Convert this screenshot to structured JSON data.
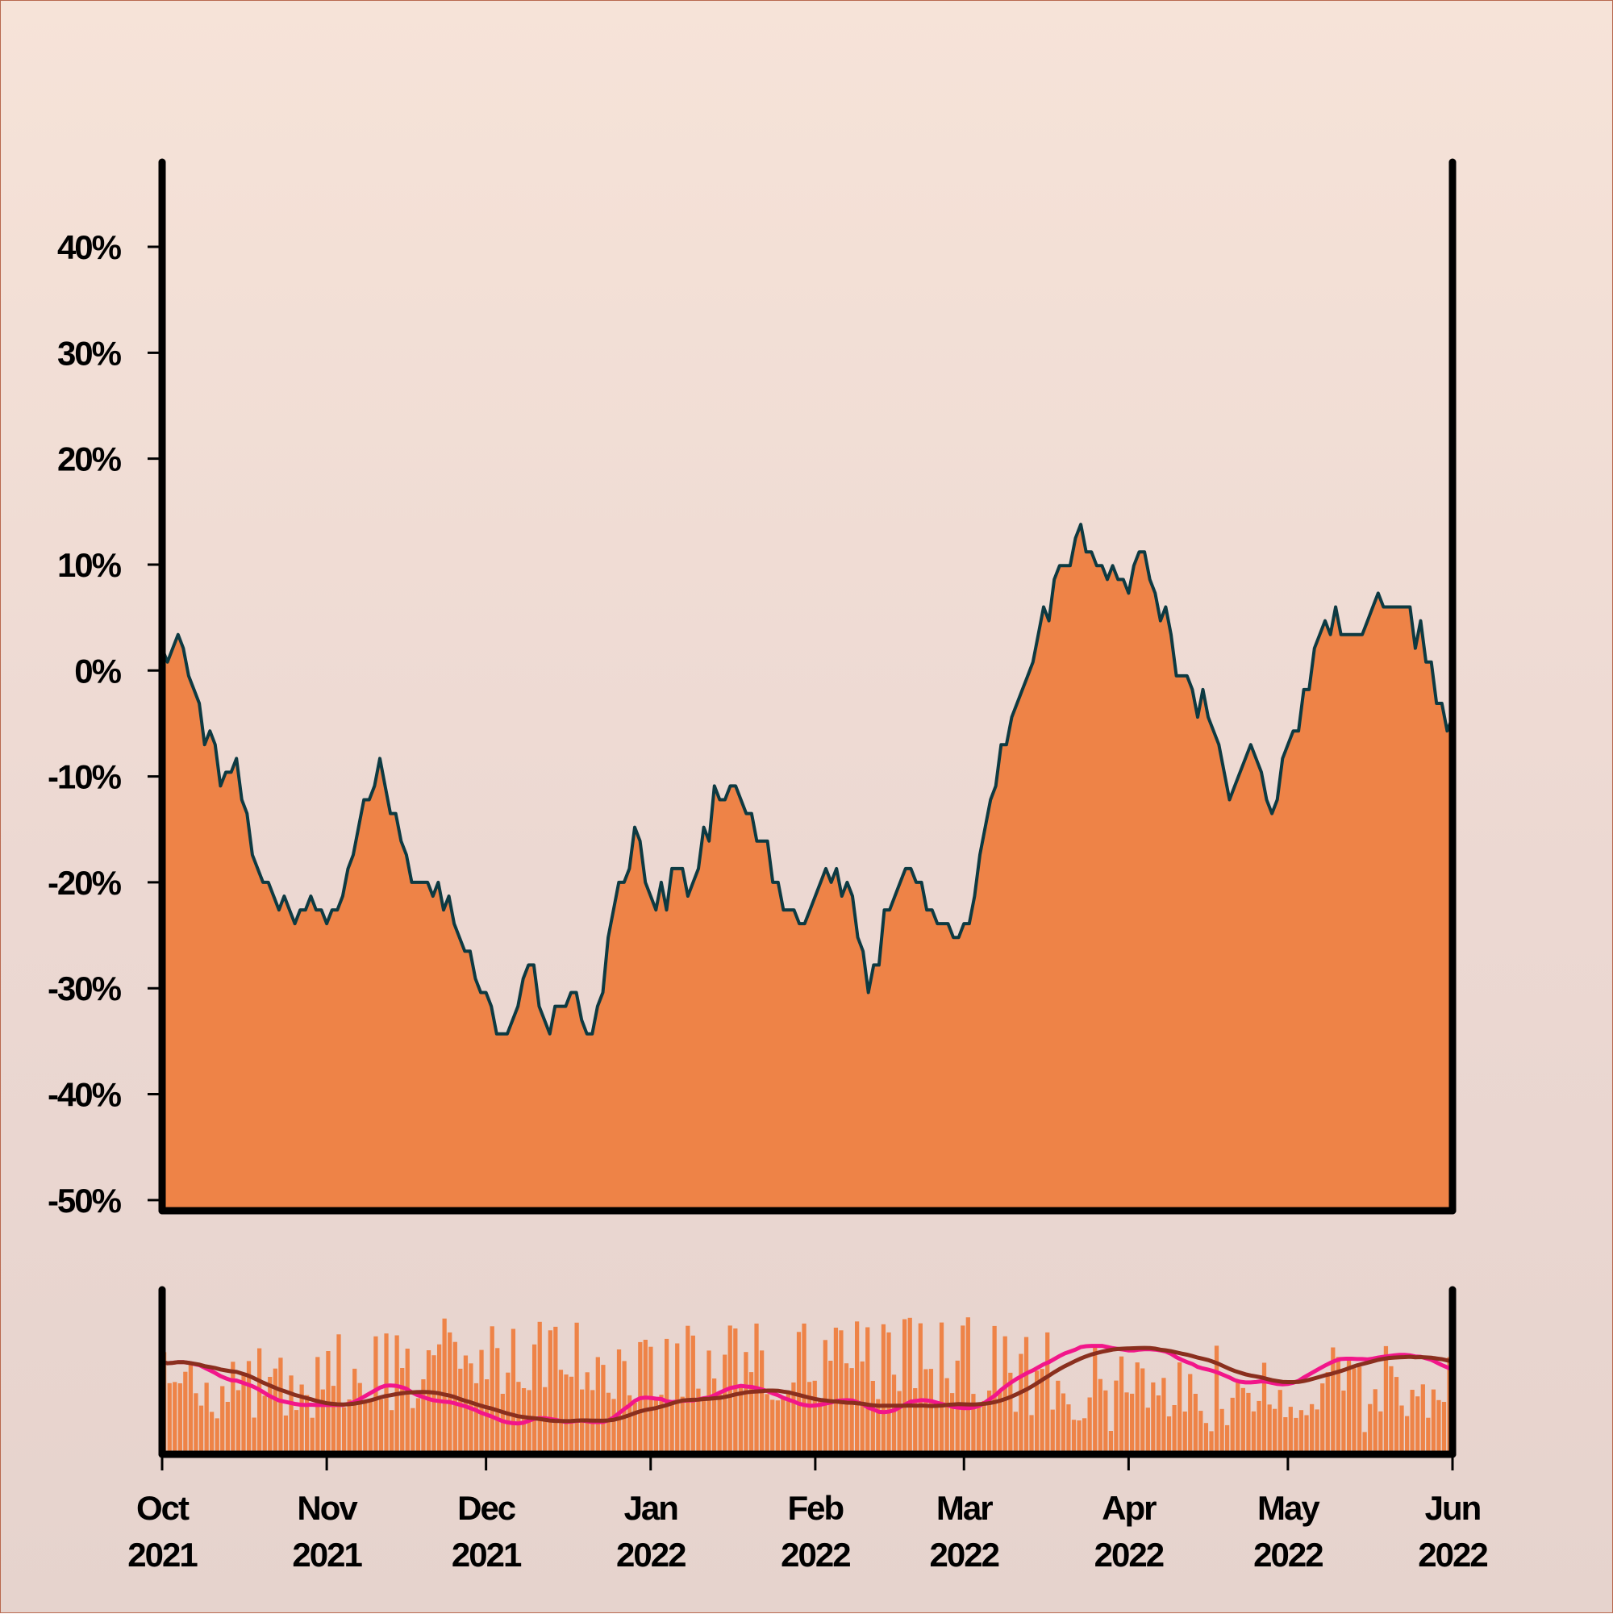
{
  "chart_data": [
    {
      "type": "area",
      "yformat": "percent",
      "ylim": [
        -51,
        48
      ],
      "yticks": [
        -50,
        -40,
        -30,
        -20,
        -10,
        0,
        10,
        20,
        30,
        40
      ],
      "ytick_labels": [
        "-50%",
        "-40%",
        "-30%",
        "-20%",
        "-10%",
        "0%",
        "10%",
        "20%",
        "30%",
        "40%"
      ],
      "grid": false,
      "colors": {
        "area_fill": "#ee8347",
        "line": "#0d3a42"
      },
      "series": [
        {
          "x": [
            "2021-10-01",
            "2021-10-04",
            "2021-10-08",
            "2021-10-12",
            "2021-10-15",
            "2021-10-18",
            "2021-10-22",
            "2021-10-26",
            "2021-10-29",
            "2021-11-03",
            "2021-11-07",
            "2021-11-11",
            "2021-11-16",
            "2021-11-21",
            "2021-11-25",
            "2021-11-28",
            "2021-12-01",
            "2021-12-05",
            "2021-12-09",
            "2021-12-13",
            "2021-12-17",
            "2021-12-21",
            "2021-12-25",
            "2021-12-29",
            "2022-01-02",
            "2022-01-06",
            "2022-01-09",
            "2022-01-13",
            "2022-01-17",
            "2022-01-21",
            "2022-01-25",
            "2022-01-29",
            "2022-02-03",
            "2022-02-07",
            "2022-02-11",
            "2022-02-15",
            "2022-02-19",
            "2022-02-23",
            "2022-02-27",
            "2022-03-03",
            "2022-03-07",
            "2022-03-11",
            "2022-03-15",
            "2022-03-19",
            "2022-03-23",
            "2022-03-27",
            "2022-03-30",
            "2022-04-03",
            "2022-04-07",
            "2022-04-11",
            "2022-04-15",
            "2022-04-20",
            "2022-04-24",
            "2022-04-28",
            "2022-05-03",
            "2022-05-07",
            "2022-05-11",
            "2022-05-15",
            "2022-05-19",
            "2022-05-23",
            "2022-05-27",
            "2022-05-31"
          ],
          "y": [
            1,
            2,
            -4,
            -11,
            -9,
            -18,
            -22,
            -24,
            -23,
            -24,
            -15,
            -10,
            -19,
            -22,
            -24,
            -28,
            -33,
            -36,
            -29,
            -34,
            -31,
            -35,
            -24,
            -17,
            -23,
            -21,
            -21,
            -13,
            -10,
            -16,
            -22,
            -26,
            -20,
            -21,
            -31,
            -22,
            -21,
            -24,
            -26,
            -23,
            -10,
            -3,
            2,
            8,
            12,
            10,
            7,
            10,
            5,
            -1,
            -4,
            -13,
            -8,
            -15,
            -5,
            2,
            4,
            2,
            6,
            4,
            1,
            -6
          ]
        }
      ]
    },
    {
      "type": "bar",
      "colors": {
        "bars": "#ee8347",
        "line_fast": "#f2168a",
        "line_slow": "#8a2f1e"
      },
      "x_start": "2021-10-01",
      "x_end": "2022-06-01",
      "xticks": [
        "2021-10-01",
        "2021-11-01",
        "2021-12-01",
        "2022-01-01",
        "2022-02-01",
        "2022-03-01",
        "2022-04-01",
        "2022-05-01",
        "2022-06-01"
      ],
      "xtick_labels": [
        [
          "Oct",
          "2021"
        ],
        [
          "Nov",
          "2021"
        ],
        [
          "Dec",
          "2021"
        ],
        [
          "Jan",
          "2022"
        ],
        [
          "Feb",
          "2022"
        ],
        [
          "Mar",
          "2022"
        ],
        [
          "Apr",
          "2022"
        ],
        [
          "May",
          "2022"
        ],
        [
          "Jun",
          "2022"
        ]
      ]
    }
  ]
}
